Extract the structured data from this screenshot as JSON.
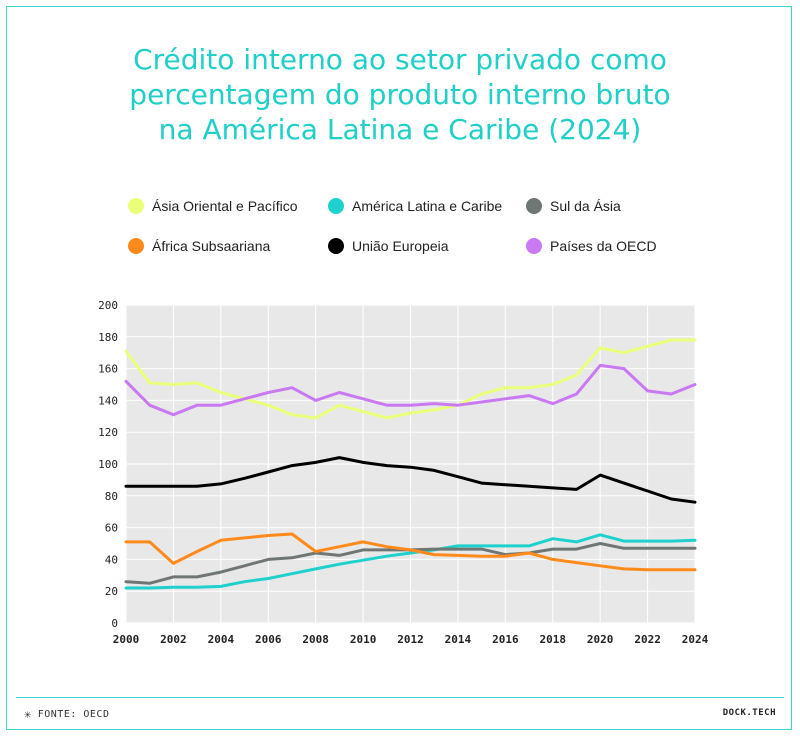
{
  "title_lines": [
    "Crédito interno ao setor privado como",
    "percentagem do produto interno bruto",
    "na América Latina e Caribe (2024)"
  ],
  "footer": {
    "source": "FONTE: OECD",
    "brand": "DOCK.TECH"
  },
  "colors": {
    "accent": "#1fcfc8",
    "plot_bg": "#e8e8e8"
  },
  "chart_data": {
    "type": "line",
    "title": "Crédito interno ao setor privado como percentagem do produto interno bruto na América Latina e Caribe (2024)",
    "x": [
      2000,
      2001,
      2002,
      2003,
      2004,
      2005,
      2006,
      2007,
      2008,
      2009,
      2010,
      2011,
      2012,
      2013,
      2014,
      2015,
      2016,
      2017,
      2018,
      2019,
      2020,
      2021,
      2022,
      2023,
      2024
    ],
    "x_ticks": [
      "2000",
      "2002",
      "2004",
      "2006",
      "2008",
      "2010",
      "2012",
      "2014",
      "2016",
      "2018",
      "2020",
      "2022",
      "2024"
    ],
    "y_ticks": [
      "0",
      "20",
      "40",
      "60",
      "80",
      "100",
      "120",
      "140",
      "160",
      "180",
      "200"
    ],
    "ylim": [
      0,
      200
    ],
    "xlim": [
      2000,
      2024
    ],
    "grid": true,
    "legend_position": "top",
    "series": [
      {
        "name": "Ásia Oriental e Pacífico",
        "color": "#ecff7a",
        "values": [
          171,
          151,
          150,
          151,
          145,
          141,
          137,
          131,
          129,
          137,
          133,
          129,
          132,
          134,
          137,
          144,
          148,
          148,
          150,
          156,
          173,
          170,
          174,
          178,
          178
        ]
      },
      {
        "name": "América Latina e Caribe",
        "color": "#1fd1cd",
        "values": [
          22,
          22,
          22.5,
          22.5,
          23,
          26,
          28,
          31,
          34,
          37,
          39.5,
          42,
          44,
          46,
          48.5,
          48.5,
          48.5,
          48.5,
          53,
          51,
          55.5,
          51.5,
          51.5,
          51.5,
          52
        ]
      },
      {
        "name": "Sul da Ásia",
        "color": "#6f7774",
        "values": [
          26,
          25,
          29,
          29,
          32,
          36,
          40,
          41,
          44,
          42.5,
          46,
          46,
          46,
          46.5,
          46.5,
          46.5,
          43,
          44,
          46.5,
          46.5,
          50,
          47,
          47,
          47,
          47
        ]
      },
      {
        "name": "África Subsaariana",
        "color": "#ff8a1c",
        "values": [
          51,
          51,
          37.5,
          45,
          52,
          53.5,
          55,
          56,
          45,
          48,
          51,
          48,
          46,
          43,
          42.5,
          42,
          42,
          44,
          40,
          38,
          36,
          34,
          33.5,
          33.5,
          33.5
        ]
      },
      {
        "name": "União Europeia",
        "color": "#000000",
        "values": [
          86,
          86,
          86,
          86,
          87.5,
          91,
          95,
          99,
          101,
          104,
          101,
          99,
          98,
          96,
          92,
          88,
          87,
          86,
          85,
          84,
          93,
          88,
          83,
          78,
          76
        ]
      },
      {
        "name": "Países da OECD",
        "color": "#c979f2",
        "values": [
          152,
          137,
          131,
          137,
          137,
          141,
          145,
          148,
          140,
          145,
          141,
          137,
          137,
          138,
          137,
          139,
          141,
          143,
          138,
          144,
          162,
          160,
          146,
          144,
          150
        ]
      }
    ]
  }
}
